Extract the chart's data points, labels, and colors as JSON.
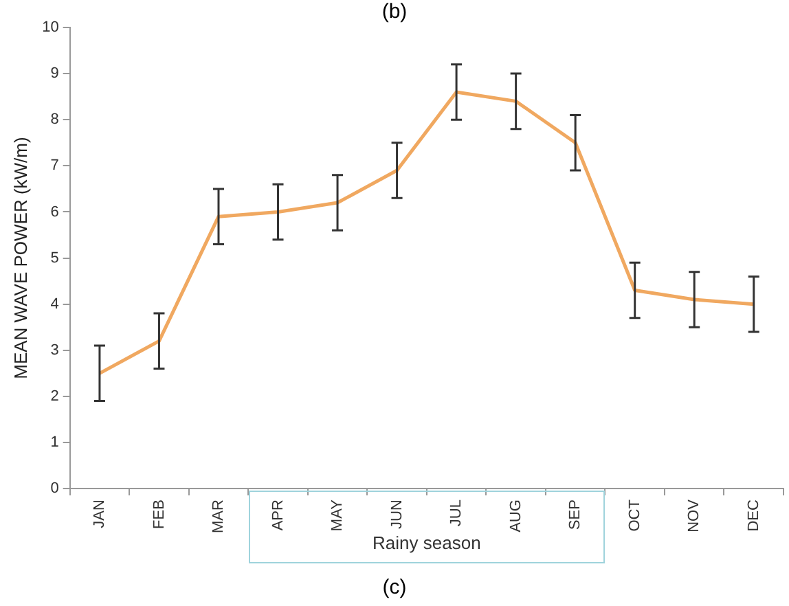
{
  "chart_data": {
    "type": "line",
    "ylabel": "MEAN WAVE POWER (kW/m)",
    "categories": [
      "JAN",
      "FEB",
      "MAR",
      "APR",
      "MAY",
      "JUN",
      "JUL",
      "AUG",
      "SEP",
      "OCT",
      "NOV",
      "DEC"
    ],
    "series": [
      {
        "color": "#f0a860",
        "values": [
          2.5,
          3.2,
          5.9,
          6.0,
          6.2,
          6.9,
          8.6,
          8.4,
          7.5,
          4.3,
          4.1,
          4.0
        ],
        "errors": [
          0.6,
          0.6,
          0.6,
          0.6,
          0.6,
          0.6,
          0.6,
          0.6,
          0.6,
          0.6,
          0.6,
          0.6
        ]
      }
    ],
    "ylim": [
      0,
      10
    ],
    "yticks": [
      0,
      1,
      2,
      3,
      4,
      5,
      6,
      7,
      8,
      9,
      10
    ],
    "annotations": [
      "(b)",
      "Rainy season",
      "(c)"
    ],
    "grid": false,
    "legend": false,
    "marker": "none",
    "line_style": "solid"
  }
}
